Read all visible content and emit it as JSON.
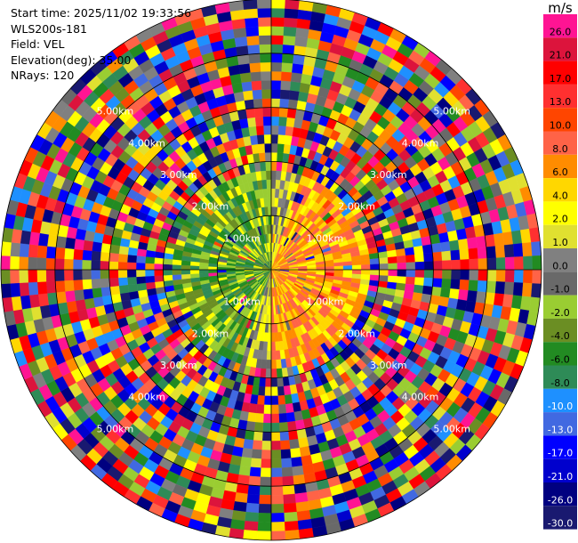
{
  "header": {
    "start_time": "Start time: 2025/11/02 19:33:56",
    "instrument": "WLS200s-181",
    "field": "Field: VEL",
    "elevation": "Elevation(deg): 35.00",
    "nrays": "NRays: 120"
  },
  "colorbar": {
    "unit": "m/s",
    "levels": [
      "26.0",
      "21.0",
      "17.0",
      "13.0",
      "10.0",
      "8.0",
      "6.0",
      "4.0",
      "2.0",
      "1.0",
      "0.0",
      "-1.0",
      "-2.0",
      "-4.0",
      "-6.0",
      "-8.0",
      "-10.0",
      "-13.0",
      "-17.0",
      "-21.0",
      "-26.0",
      "-30.0"
    ],
    "colors": [
      "#ff1493",
      "#dc143c",
      "#ff0000",
      "#ff3030",
      "#ff4500",
      "#ff6347",
      "#ff8c00",
      "#ffd700",
      "#ffff00",
      "#e0e030",
      "#808080",
      "#696969",
      "#9acd32",
      "#6b8e23",
      "#228b22",
      "#2e8b57",
      "#1e90ff",
      "#4169e1",
      "#0000ff",
      "#0000cd",
      "#000080",
      "#191970"
    ]
  },
  "range_labels": [
    "1.00km",
    "2.00km",
    "3.00km",
    "4.00km",
    "5.00km"
  ]
}
